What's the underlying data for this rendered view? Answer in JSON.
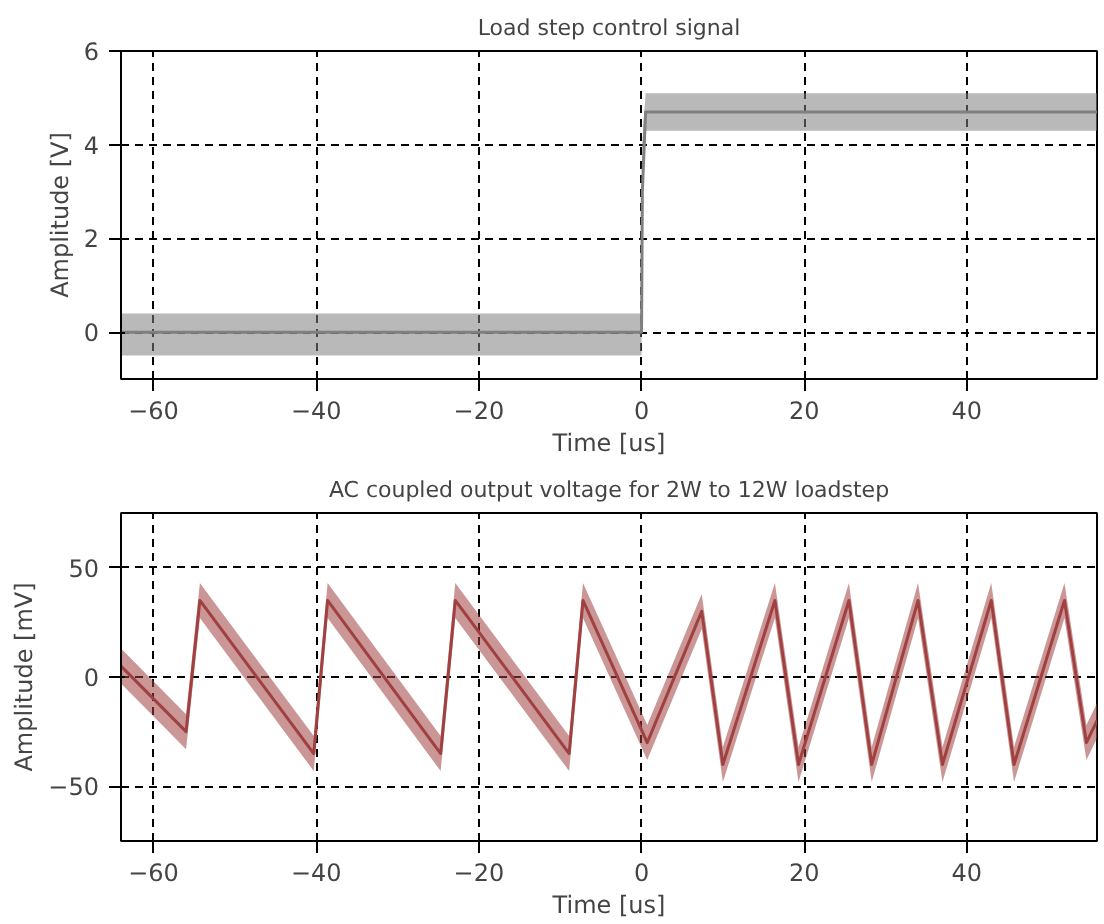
{
  "chart_data": [
    {
      "type": "line",
      "title": "Load step control signal",
      "xlabel": "Time [us]",
      "ylabel": "Amplitude [V]",
      "xlim": [
        -64,
        56
      ],
      "ylim": [
        -1,
        6
      ],
      "xticks": [
        -60,
        -40,
        -20,
        0,
        20,
        40
      ],
      "yticks": [
        0,
        2,
        4,
        6
      ],
      "grid": true,
      "line_style": "solid",
      "series": [
        {
          "color": "#808080",
          "x": [
            -64,
            0,
            0.1,
            0.5,
            56
          ],
          "values": [
            0,
            0,
            3,
            4.7,
            4.7
          ],
          "lower": [
            -0.5,
            -0.5,
            2.9,
            4.3,
            4.3
          ],
          "upper": [
            0.4,
            0.4,
            4.1,
            5.1,
            5.1
          ]
        }
      ]
    },
    {
      "type": "line",
      "title": "AC coupled output voltage for 2W to 12W loadstep",
      "xlabel": "Time [us]",
      "ylabel": "Amplitude [mV]",
      "xlim": [
        -64,
        56
      ],
      "ylim": [
        -75,
        75
      ],
      "xticks": [
        -60,
        -40,
        -20,
        0,
        20,
        40
      ],
      "yticks": [
        -50,
        0,
        50
      ],
      "grid": true,
      "line_style": "solid",
      "series": [
        {
          "color": "#a04040",
          "x": [
            -64,
            -56,
            -54.3,
            -40.3,
            -38.6,
            -24.7,
            -22.9,
            -8.9,
            -7.2,
            0.7,
            7.4,
            10,
            16.4,
            19.3,
            25.5,
            28.3,
            34,
            37,
            43,
            45.8,
            52,
            54.7,
            56
          ],
          "values": [
            5,
            -25,
            35,
            -35,
            35,
            -35,
            35,
            -35,
            35,
            -30,
            30,
            -40,
            35,
            -40,
            35,
            -40,
            35,
            -40,
            35,
            -40,
            35,
            -30,
            -20
          ],
          "lower": [
            -3,
            -33,
            27,
            -43,
            27,
            -43,
            27,
            -43,
            27,
            -38,
            22,
            -48,
            27,
            -48,
            27,
            -48,
            27,
            -48,
            27,
            -48,
            27,
            -38,
            -28
          ],
          "upper": [
            13,
            -17,
            43,
            -27,
            43,
            -27,
            43,
            -27,
            43,
            -22,
            38,
            -32,
            43,
            -32,
            43,
            -32,
            43,
            -32,
            43,
            -32,
            43,
            -22,
            -12
          ]
        }
      ]
    }
  ]
}
